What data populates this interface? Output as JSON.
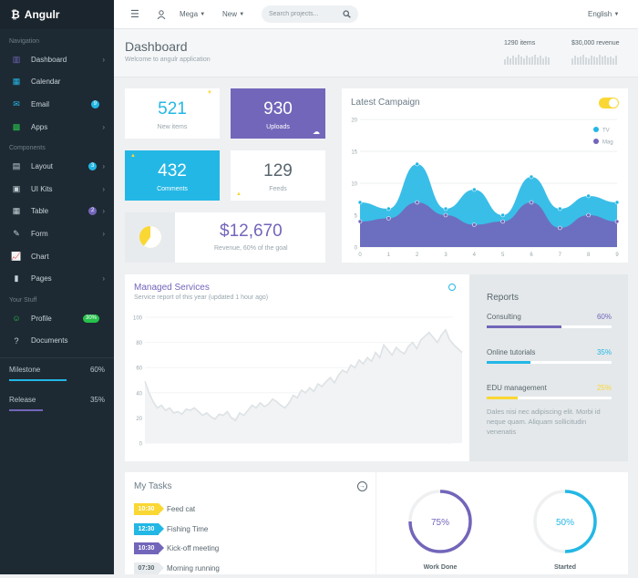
{
  "brand": {
    "name": "Angulr",
    "icon": "bitcoin-icon"
  },
  "sidebar": {
    "sections": [
      "Navigation",
      "Components",
      "Your Stuff"
    ],
    "nav": [
      {
        "label": "Dashboard",
        "icon": "bar-chart-icon",
        "chev": true
      },
      {
        "label": "Calendar",
        "icon": "calendar-icon",
        "chev": false
      },
      {
        "label": "Email",
        "icon": "envelope-icon",
        "badge": "9",
        "badge_color": "#23b7e5"
      },
      {
        "label": "Apps",
        "icon": "grid-icon",
        "chev": true
      }
    ],
    "components": [
      {
        "label": "Layout",
        "icon": "columns-icon",
        "badge": "3",
        "badge_color": "#23b7e5",
        "chev": true
      },
      {
        "label": "UI Kits",
        "icon": "briefcase-icon",
        "chev": true
      },
      {
        "label": "Table",
        "icon": "table-icon",
        "badge": "2",
        "badge_color": "#7266ba",
        "chev": true
      },
      {
        "label": "Form",
        "icon": "edit-icon",
        "chev": true
      },
      {
        "label": "Chart",
        "icon": "line-chart-icon",
        "chev": false
      },
      {
        "label": "Pages",
        "icon": "file-icon",
        "chev": true
      }
    ],
    "stuff": [
      {
        "label": "Profile",
        "icon": "user-icon",
        "badge": "30%",
        "badge_color": "#27c24c"
      },
      {
        "label": "Documents",
        "icon": "question-icon"
      }
    ],
    "progress": [
      {
        "label": "Milestone",
        "value": "60%",
        "fraction": 0.6,
        "color": "#23b7e5"
      },
      {
        "label": "Release",
        "value": "35%",
        "fraction": 0.35,
        "color": "#7266ba"
      }
    ]
  },
  "topbar": {
    "menu1": "Mega",
    "menu2": "New",
    "search_placeholder": "Search projects...",
    "language": "English"
  },
  "header": {
    "title": "Dashboard",
    "subtitle": "Welcome to angulr application",
    "items_label": "1290 items",
    "revenue_label": "$30,000 revenue",
    "spark1": [
      6,
      9,
      7,
      10,
      8,
      11,
      9,
      7,
      10,
      8,
      9,
      11,
      8,
      10,
      7,
      9,
      8
    ],
    "spark2": [
      7,
      10,
      8,
      9,
      11,
      8,
      7,
      10,
      9,
      8,
      11,
      9,
      10,
      8,
      9,
      7,
      10
    ]
  },
  "tiles": [
    {
      "value": "521",
      "label": "New items"
    },
    {
      "value": "930",
      "label": "Uploads"
    },
    {
      "value": "432",
      "label": "Comments"
    },
    {
      "value": "129",
      "label": "Feeds"
    }
  ],
  "revenue": {
    "value": "$12,670",
    "label": "Revenue, 60% of the goal",
    "fraction": 0.6
  },
  "campaign": {
    "title": "Latest Campaign",
    "toggle_on": true,
    "chart_data": {
      "type": "area",
      "x": [
        0,
        1,
        2,
        3,
        4,
        5,
        6,
        7,
        8,
        9
      ],
      "ylim": [
        0,
        20
      ],
      "yticks": [
        0,
        5,
        10,
        15,
        20
      ],
      "series": [
        {
          "name": "TV",
          "color": "#23b7e5",
          "values": [
            7,
            6,
            13,
            6,
            9,
            5,
            11,
            6,
            8,
            7
          ]
        },
        {
          "name": "Mag",
          "color": "#7266ba",
          "values": [
            4,
            4.5,
            7,
            5,
            3.5,
            4,
            7,
            3,
            5,
            4
          ]
        }
      ]
    }
  },
  "services": {
    "title": "Managed Services",
    "subtitle": "Service report of this year (updated 1 hour ago)",
    "chart_data": {
      "type": "area",
      "ylim": [
        0,
        100
      ],
      "yticks": [
        0,
        20,
        40,
        60,
        80,
        100
      ],
      "values": [
        49,
        40,
        33,
        28,
        30,
        26,
        28,
        24,
        25,
        23,
        27,
        26,
        28,
        25,
        22,
        24,
        21,
        19,
        23,
        22,
        25,
        20,
        18,
        24,
        22,
        26,
        30,
        28,
        32,
        29,
        31,
        35,
        33,
        30,
        28,
        32,
        38,
        36,
        42,
        40,
        44,
        41,
        47,
        45,
        49,
        52,
        48,
        54,
        58,
        56,
        62,
        60,
        66,
        63,
        68,
        65,
        72,
        68,
        78,
        74,
        70,
        76,
        73,
        71,
        77,
        80,
        75,
        82,
        85,
        88,
        84,
        80,
        86,
        90,
        82,
        78,
        75,
        72
      ]
    }
  },
  "reports": {
    "title": "Reports",
    "items": [
      {
        "label": "Consulting",
        "value": "60%",
        "fraction": 0.6,
        "color": "#7266ba"
      },
      {
        "label": "Online tutorials",
        "value": "35%",
        "fraction": 0.35,
        "color": "#23b7e5"
      },
      {
        "label": "EDU management",
        "value": "25%",
        "fraction": 0.25,
        "color": "#fad733"
      }
    ],
    "text": "Dales nisi nec adipiscing elit. Morbi id neque quam. Aliquam sollicitudin venenatis"
  },
  "tasks": {
    "title": "My Tasks",
    "items": [
      {
        "time": "10:30",
        "label": "Feed cat",
        "color": "#fad733"
      },
      {
        "time": "12:30",
        "label": "Fishing Time",
        "color": "#23b7e5"
      },
      {
        "time": "10:30",
        "label": "Kick-off meeting",
        "color": "#7266ba"
      },
      {
        "time": "07:30",
        "label": "Morning running",
        "color": "#e8ebed"
      }
    ]
  },
  "rings": [
    {
      "value": "75%",
      "fraction": 0.75,
      "label": "Work Done",
      "color": "#7266ba"
    },
    {
      "value": "50%",
      "fraction": 0.5,
      "label": "Started",
      "color": "#23b7e5"
    }
  ]
}
